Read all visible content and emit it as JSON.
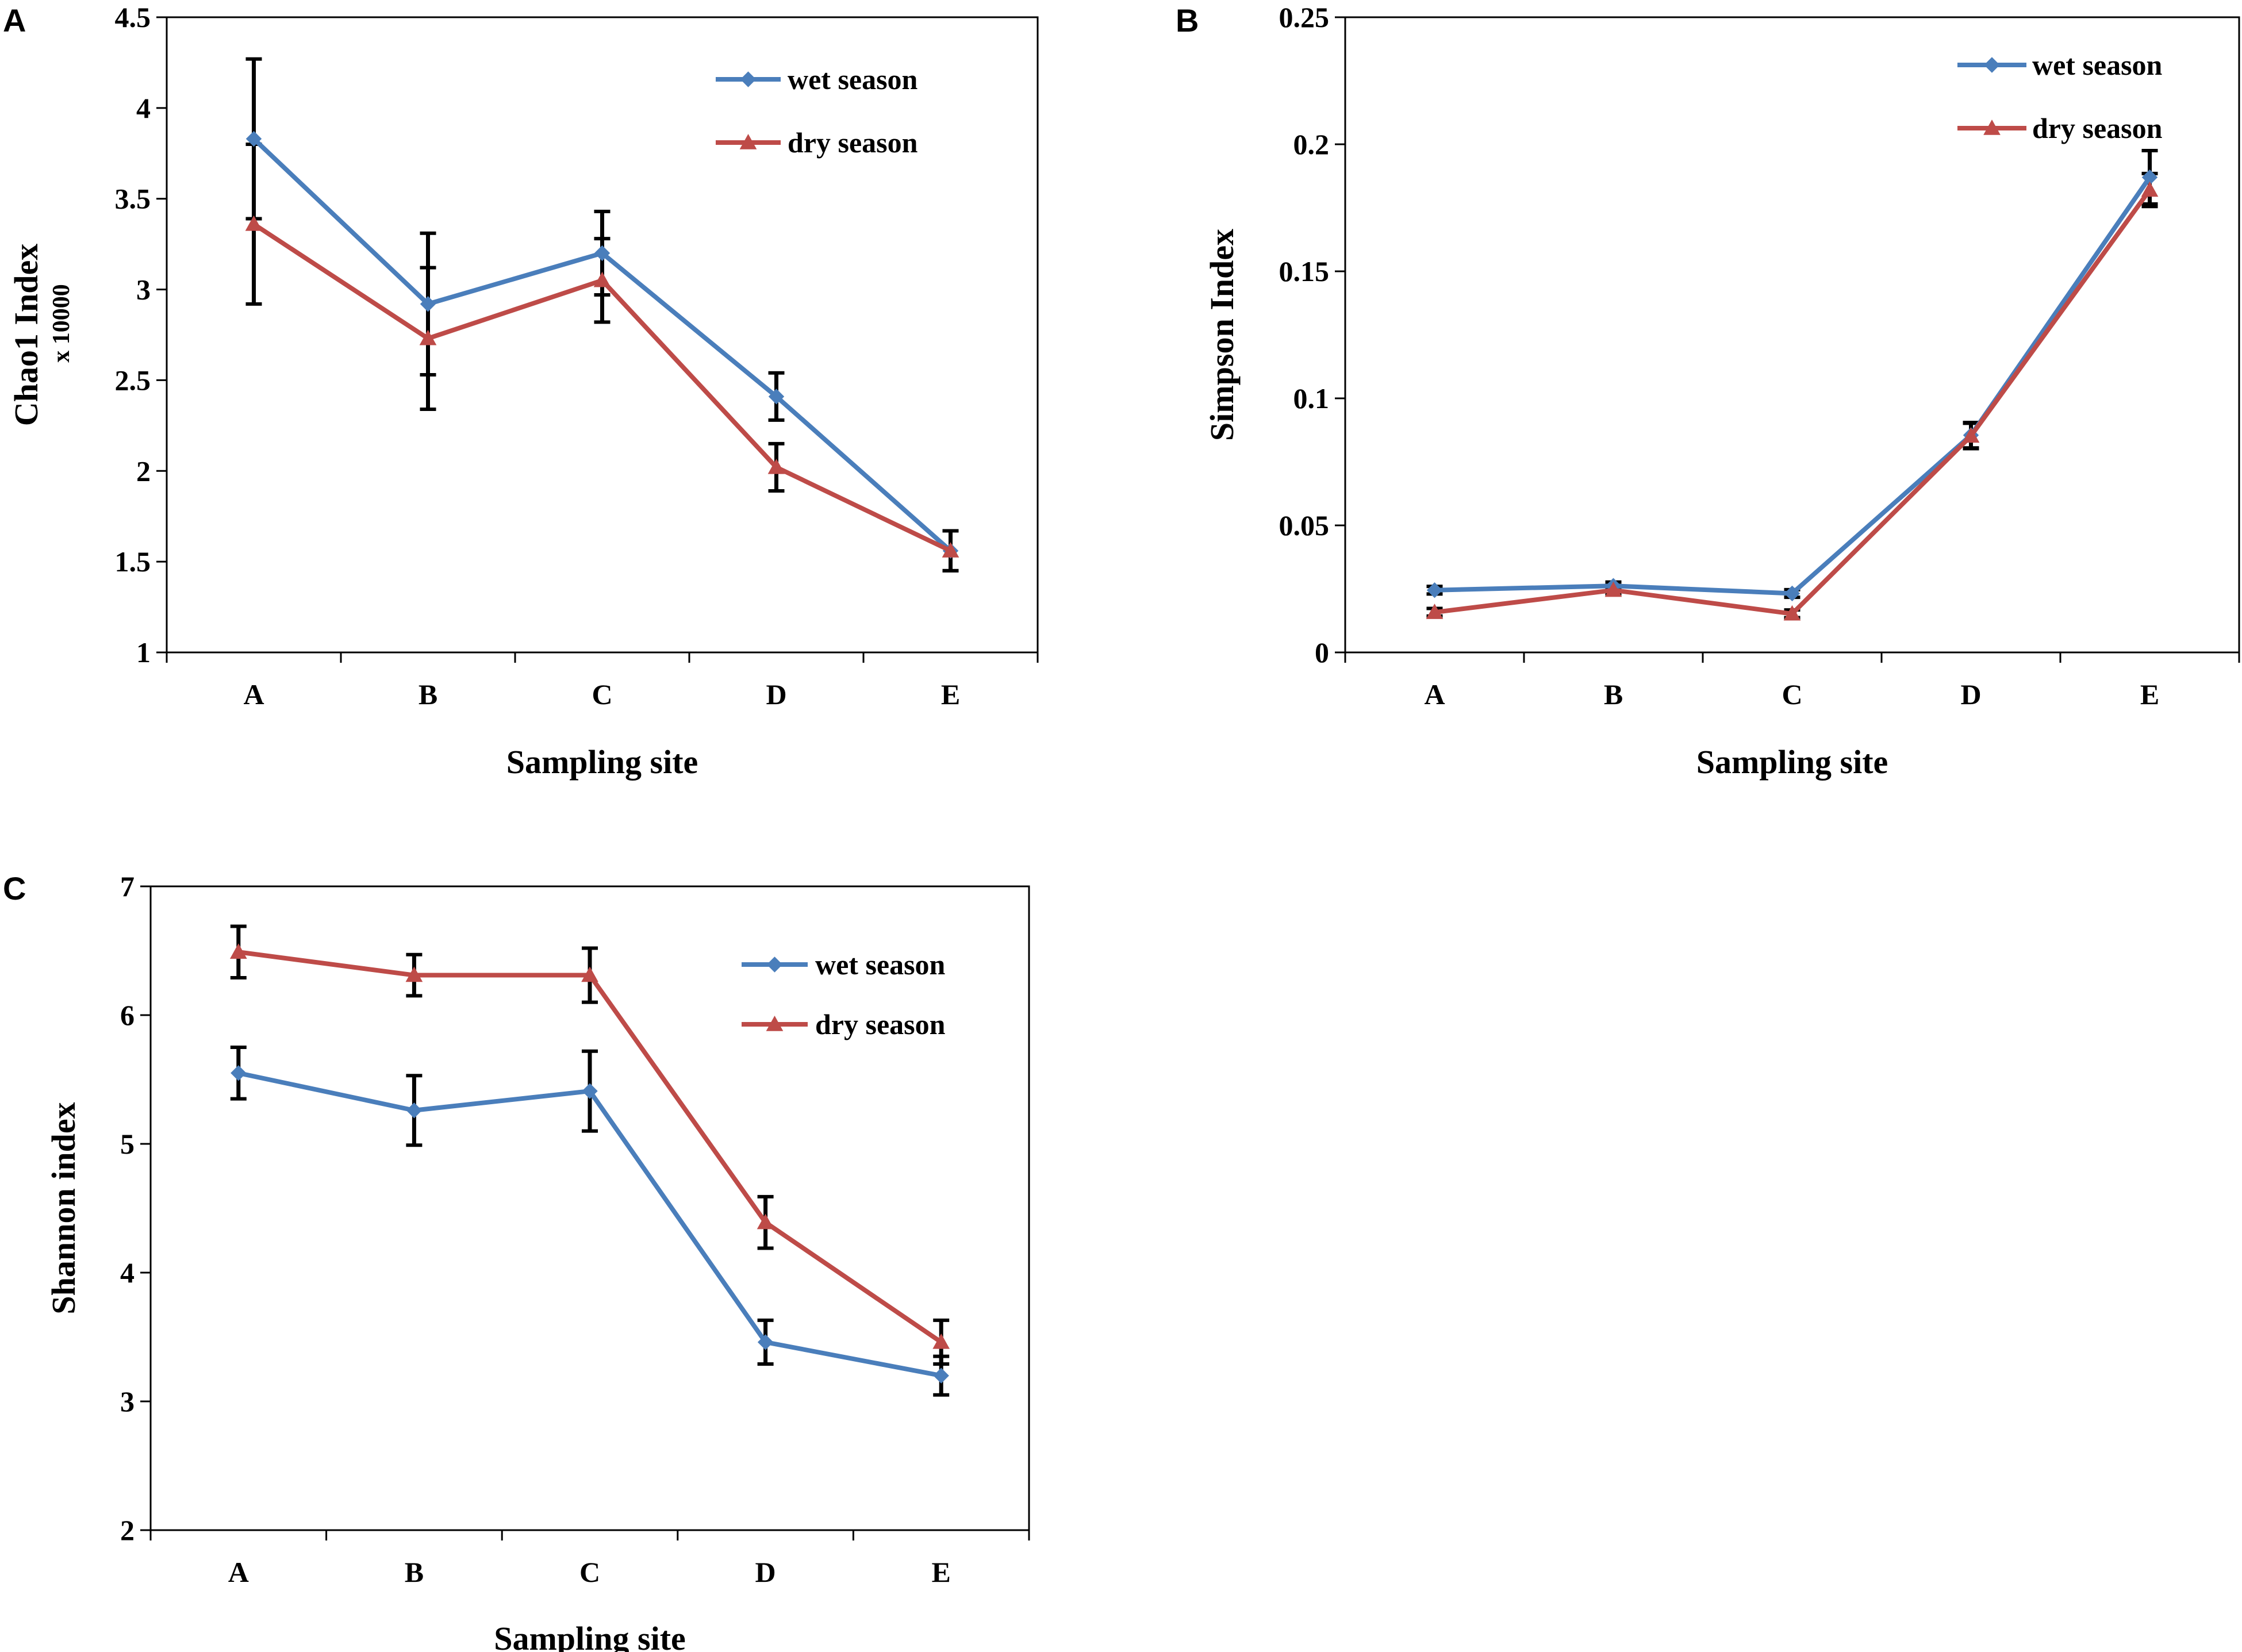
{
  "colors": {
    "wet": "#4a7ebb",
    "dry": "#be4b48",
    "error": "#000000",
    "frame": "#000000"
  },
  "chart_data": [
    {
      "panel": "A",
      "type": "line",
      "categories": [
        "A",
        "B",
        "C",
        "D",
        "E"
      ],
      "xlabel": "Sampling site",
      "ylabel": "Chao1  Index",
      "ylabel_sub": "x 10000",
      "ylim": [
        1,
        4.5
      ],
      "yticks": [
        "1",
        "1.5",
        "2",
        "2.5",
        "3",
        "3.5",
        "4",
        "4.5"
      ],
      "ytick_values": [
        1,
        1.5,
        2,
        2.5,
        3,
        3.5,
        4,
        4.5
      ],
      "legend_position": "top-right",
      "series": [
        {
          "name": "wet season",
          "key": "wet",
          "marker": "diamond",
          "values": [
            3.83,
            2.92,
            3.2,
            2.41,
            1.56
          ],
          "errors": [
            0.44,
            0.39,
            0.23,
            0.13,
            0.11
          ]
        },
        {
          "name": "dry season",
          "key": "dry",
          "marker": "triangle",
          "values": [
            3.36,
            2.73,
            3.05,
            2.02,
            1.56
          ],
          "errors": [
            0.44,
            0.39,
            0.23,
            0.13,
            0.11
          ]
        }
      ]
    },
    {
      "panel": "B",
      "type": "line",
      "categories": [
        "A",
        "B",
        "C",
        "D",
        "E"
      ],
      "xlabel": "Sampling site",
      "ylabel": "Simpson  Index",
      "ylabel_sub": "",
      "ylim": [
        0,
        0.25
      ],
      "yticks": [
        "0",
        "0.05",
        "0.1",
        "0.15",
        "0.2",
        "0.25"
      ],
      "ytick_values": [
        0,
        0.05,
        0.1,
        0.15,
        0.2,
        0.25
      ],
      "legend_position": "top-right",
      "series": [
        {
          "name": "wet season",
          "key": "wet",
          "marker": "diamond",
          "values": [
            0.0245,
            0.0262,
            0.0232,
            0.0855,
            0.187
          ],
          "errors": [
            0.0015,
            0.0015,
            0.0015,
            0.005,
            0.0105
          ]
        },
        {
          "name": "dry season",
          "key": "dry",
          "marker": "triangle",
          "values": [
            0.0158,
            0.0245,
            0.0152,
            0.0852,
            0.182
          ],
          "errors": [
            0.0015,
            0.0015,
            0.0015,
            0.005,
            0.0065
          ]
        }
      ]
    },
    {
      "panel": "C",
      "type": "line",
      "categories": [
        "A",
        "B",
        "C",
        "D",
        "E"
      ],
      "xlabel": "Sampling site",
      "ylabel": "Shannon  index",
      "ylabel_sub": "",
      "ylim": [
        2,
        7
      ],
      "yticks": [
        "2",
        "3",
        "4",
        "5",
        "6",
        "7"
      ],
      "ytick_values": [
        2,
        3,
        4,
        5,
        6,
        7
      ],
      "legend_position": "top-right",
      "series": [
        {
          "name": "wet season",
          "key": "wet",
          "marker": "diamond",
          "values": [
            5.55,
            5.26,
            5.41,
            3.46,
            3.2
          ],
          "errors": [
            0.2,
            0.27,
            0.31,
            0.17,
            0.15
          ]
        },
        {
          "name": "dry season",
          "key": "dry",
          "marker": "triangle",
          "values": [
            6.49,
            6.31,
            6.31,
            4.39,
            3.46
          ],
          "errors": [
            0.2,
            0.16,
            0.21,
            0.2,
            0.17
          ]
        }
      ]
    }
  ]
}
